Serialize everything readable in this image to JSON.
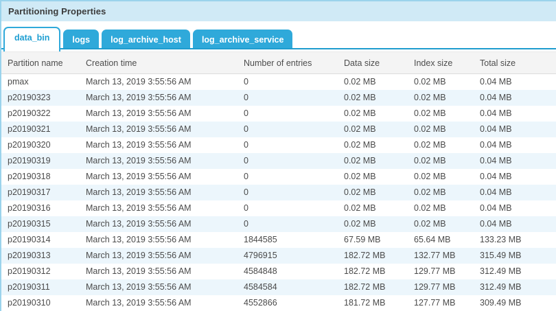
{
  "panel": {
    "title": "Partitioning Properties"
  },
  "tabs": [
    {
      "label": "data_bin",
      "active": true
    },
    {
      "label": "logs",
      "active": false
    },
    {
      "label": "log_archive_host",
      "active": false
    },
    {
      "label": "log_archive_service",
      "active": false
    }
  ],
  "table": {
    "columns": [
      "Partition name",
      "Creation time",
      "Number of entries",
      "Data size",
      "Index size",
      "Total size"
    ],
    "column_keys": [
      "partition-name",
      "creation-time",
      "number-of-entries",
      "data-size",
      "index-size",
      "total-size"
    ],
    "rows": [
      [
        "pmax",
        "March 13, 2019 3:55:56 AM",
        "0",
        "0.02 MB",
        "0.02 MB",
        "0.04 MB"
      ],
      [
        "p20190323",
        "March 13, 2019 3:55:56 AM",
        "0",
        "0.02 MB",
        "0.02 MB",
        "0.04 MB"
      ],
      [
        "p20190322",
        "March 13, 2019 3:55:56 AM",
        "0",
        "0.02 MB",
        "0.02 MB",
        "0.04 MB"
      ],
      [
        "p20190321",
        "March 13, 2019 3:55:56 AM",
        "0",
        "0.02 MB",
        "0.02 MB",
        "0.04 MB"
      ],
      [
        "p20190320",
        "March 13, 2019 3:55:56 AM",
        "0",
        "0.02 MB",
        "0.02 MB",
        "0.04 MB"
      ],
      [
        "p20190319",
        "March 13, 2019 3:55:56 AM",
        "0",
        "0.02 MB",
        "0.02 MB",
        "0.04 MB"
      ],
      [
        "p20190318",
        "March 13, 2019 3:55:56 AM",
        "0",
        "0.02 MB",
        "0.02 MB",
        "0.04 MB"
      ],
      [
        "p20190317",
        "March 13, 2019 3:55:56 AM",
        "0",
        "0.02 MB",
        "0.02 MB",
        "0.04 MB"
      ],
      [
        "p20190316",
        "March 13, 2019 3:55:56 AM",
        "0",
        "0.02 MB",
        "0.02 MB",
        "0.04 MB"
      ],
      [
        "p20190315",
        "March 13, 2019 3:55:56 AM",
        "0",
        "0.02 MB",
        "0.02 MB",
        "0.04 MB"
      ],
      [
        "p20190314",
        "March 13, 2019 3:55:56 AM",
        "1844585",
        "67.59 MB",
        "65.64 MB",
        "133.23 MB"
      ],
      [
        "p20190313",
        "March 13, 2019 3:55:56 AM",
        "4796915",
        "182.72 MB",
        "132.77 MB",
        "315.49 MB"
      ],
      [
        "p20190312",
        "March 13, 2019 3:55:56 AM",
        "4584848",
        "182.72 MB",
        "129.77 MB",
        "312.49 MB"
      ],
      [
        "p20190311",
        "March 13, 2019 3:55:56 AM",
        "4584584",
        "182.72 MB",
        "129.77 MB",
        "312.49 MB"
      ],
      [
        "p20190310",
        "March 13, 2019 3:55:56 AM",
        "4552866",
        "181.72 MB",
        "127.77 MB",
        "309.49 MB"
      ]
    ]
  },
  "colors": {
    "accent": "#2fa9da",
    "accent_dark": "#1e9cce",
    "accent_text": "#1d9ed2",
    "border_blue": "#9bd3ec",
    "titlebar_bg": "#d0eaf6",
    "header_bg": "#f4f4f4",
    "row_alt": "#ecf6fc"
  }
}
